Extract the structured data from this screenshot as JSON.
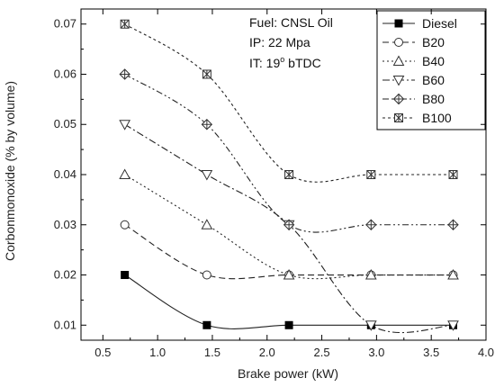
{
  "chart_data": {
    "type": "line",
    "xlabel": "Brake power (kW)",
    "ylabel": "Corbonmonoxide (% by volume)",
    "xlim": [
      0.3,
      4.0
    ],
    "ylim": [
      0.007,
      0.073
    ],
    "xticks": [
      "0.5",
      "1.0",
      "1.5",
      "2.0",
      "2.5",
      "3.0",
      "3.5",
      "4.0"
    ],
    "yticks": [
      "0.01",
      "0.02",
      "0.03",
      "0.04",
      "0.05",
      "0.06",
      "0.07"
    ],
    "annotations": [
      "Fuel: CNSL Oil",
      "IP: 22 Mpa",
      "IT: 19",
      "o",
      " bTDC"
    ],
    "legend_position": "top-right",
    "x": [
      0.7,
      1.45,
      2.2,
      2.95,
      3.7
    ],
    "series": [
      {
        "name": "Diesel",
        "marker": "filled-square",
        "dash": "solid",
        "values": [
          0.02,
          0.01,
          0.01,
          0.01,
          0.01
        ]
      },
      {
        "name": "B20",
        "marker": "open-circle",
        "dash": "long-dash",
        "values": [
          0.03,
          0.02,
          0.02,
          0.02,
          0.02
        ]
      },
      {
        "name": "B40",
        "marker": "open-triangle-up",
        "dash": "dotted",
        "values": [
          0.04,
          0.03,
          0.02,
          0.02,
          0.02
        ]
      },
      {
        "name": "B60",
        "marker": "open-triangle-down",
        "dash": "dash-dot",
        "values": [
          0.05,
          0.04,
          0.03,
          0.01,
          0.01
        ]
      },
      {
        "name": "B80",
        "marker": "crossed-diamond",
        "dash": "dash-dot-dot",
        "values": [
          0.06,
          0.05,
          0.03,
          0.03,
          0.03
        ]
      },
      {
        "name": "B100",
        "marker": "asterisk-box",
        "dash": "short-dash",
        "values": [
          0.07,
          0.06,
          0.04,
          0.04,
          0.04
        ]
      }
    ]
  }
}
